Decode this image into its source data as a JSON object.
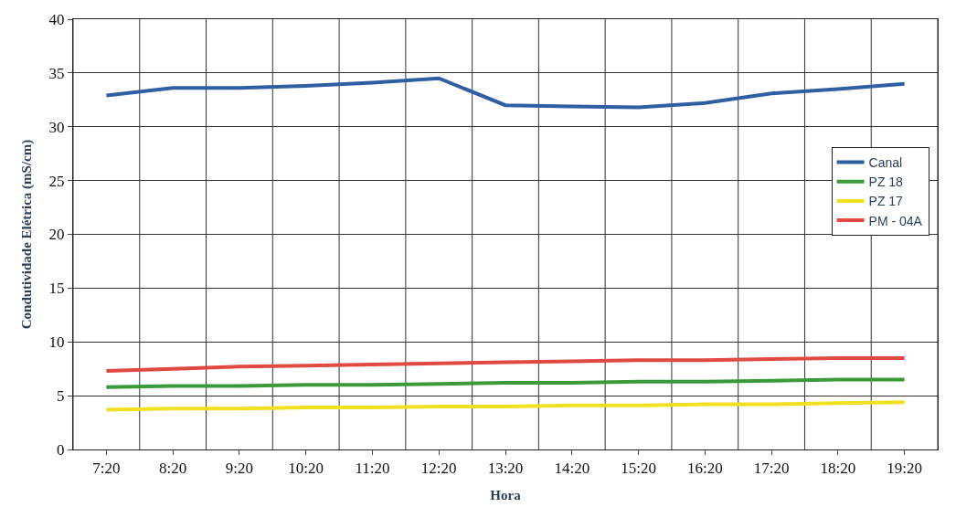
{
  "chart_data": {
    "type": "line",
    "xlabel": "Hora",
    "ylabel": "Condutividade Elétrica (mS/cm)",
    "categories": [
      "7:20",
      "8:20",
      "9:20",
      "10:20",
      "11:20",
      "12:20",
      "13:20",
      "14:20",
      "15:20",
      "16:20",
      "17:20",
      "18:20",
      "19:20"
    ],
    "series": [
      {
        "name": "Canal",
        "color": "#2e5fa3",
        "values": [
          32.9,
          33.6,
          33.6,
          33.8,
          34.1,
          34.5,
          32.0,
          31.9,
          31.8,
          32.2,
          33.1,
          33.5,
          34.0
        ]
      },
      {
        "name": "PZ 18",
        "color": "#3a9a3a",
        "values": [
          5.8,
          5.9,
          5.9,
          6.0,
          6.0,
          6.1,
          6.2,
          6.2,
          6.3,
          6.3,
          6.4,
          6.5,
          6.5
        ]
      },
      {
        "name": "PZ 17",
        "color": "#f0e020",
        "values": [
          3.7,
          3.8,
          3.8,
          3.9,
          3.9,
          4.0,
          4.0,
          4.1,
          4.1,
          4.2,
          4.2,
          4.3,
          4.4
        ]
      },
      {
        "name": "PM - 04A",
        "color": "#e04a40",
        "values": [
          7.3,
          7.5,
          7.7,
          7.8,
          7.9,
          8.0,
          8.1,
          8.2,
          8.3,
          8.3,
          8.4,
          8.5,
          8.5
        ]
      }
    ],
    "ylim": [
      0,
      40
    ],
    "yticks": [
      0,
      5,
      10,
      15,
      20,
      25,
      30,
      35,
      40
    ],
    "grid": true,
    "legend": "right",
    "marker": "none",
    "line_style": "solid"
  }
}
